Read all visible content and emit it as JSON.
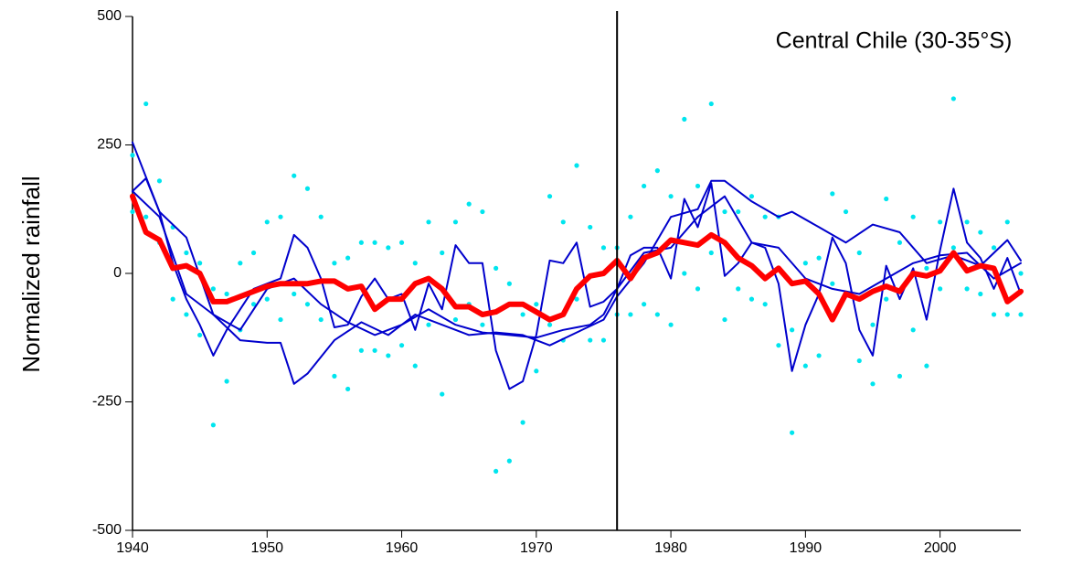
{
  "chart_data": {
    "type": "line",
    "annotation": "Central Chile (30-35°S)",
    "ylabel": "Normalized rainfall",
    "xlim": [
      1940,
      2006
    ],
    "xticks": [
      1940,
      1950,
      1960,
      1970,
      1980,
      1990,
      2000
    ],
    "ylim": [
      -500,
      500
    ],
    "yticks": [
      -500,
      -250,
      0,
      250,
      500
    ],
    "vline": 1976,
    "series": [
      {
        "type": "scatter",
        "color": "#00e5ee",
        "x": [
          1940,
          1940,
          1941,
          1941,
          1942,
          1942,
          1943,
          1943,
          1944,
          1944,
          1945,
          1945,
          1946,
          1946,
          1947,
          1947,
          1948,
          1948,
          1949,
          1949,
          1950,
          1950,
          1951,
          1951,
          1952,
          1952,
          1953,
          1953,
          1954,
          1954,
          1955,
          1955,
          1956,
          1956,
          1957,
          1957,
          1958,
          1958,
          1959,
          1959,
          1960,
          1960,
          1961,
          1961,
          1962,
          1962,
          1963,
          1963,
          1964,
          1964,
          1965,
          1965,
          1966,
          1966,
          1967,
          1967,
          1968,
          1968,
          1969,
          1969,
          1970,
          1970,
          1971,
          1971,
          1972,
          1972,
          1973,
          1973,
          1974,
          1974,
          1975,
          1975,
          1976,
          1976,
          1977,
          1977,
          1978,
          1978,
          1979,
          1979,
          1980,
          1980,
          1981,
          1981,
          1982,
          1982,
          1983,
          1983,
          1984,
          1984,
          1985,
          1985,
          1986,
          1986,
          1987,
          1987,
          1988,
          1988,
          1989,
          1989,
          1990,
          1990,
          1991,
          1991,
          1992,
          1992,
          1993,
          1993,
          1994,
          1994,
          1995,
          1995,
          1996,
          1996,
          1997,
          1997,
          1998,
          1998,
          1999,
          1999,
          2000,
          2000,
          2001,
          2001,
          2002,
          2002,
          2003,
          2003,
          2004,
          2004,
          2005,
          2005,
          2006,
          2006
        ],
        "values": [
          230,
          120,
          330,
          110,
          180,
          60,
          90,
          -50,
          40,
          -80,
          20,
          -120,
          -30,
          -295,
          -40,
          -210,
          20,
          -110,
          40,
          -60,
          100,
          -50,
          110,
          -90,
          190,
          -40,
          165,
          -60,
          110,
          -90,
          20,
          -200,
          30,
          -225,
          60,
          -150,
          60,
          -150,
          50,
          -160,
          60,
          -140,
          20,
          -180,
          100,
          -100,
          40,
          -235,
          100,
          -90,
          135,
          -60,
          120,
          -100,
          10,
          -385,
          -20,
          -365,
          -80,
          -290,
          -60,
          -190,
          150,
          -100,
          100,
          -130,
          210,
          -50,
          90,
          -130,
          50,
          -130,
          50,
          -80,
          110,
          -80,
          170,
          -60,
          200,
          -80,
          150,
          -100,
          300,
          0,
          170,
          -30,
          330,
          40,
          120,
          -90,
          120,
          -30,
          150,
          -50,
          110,
          -60,
          110,
          -140,
          -110,
          -310,
          20,
          -180,
          30,
          -160,
          155,
          -20,
          120,
          -40,
          40,
          -170,
          -100,
          -215,
          145,
          -50,
          60,
          -200,
          110,
          -110,
          10,
          -180,
          100,
          -30,
          340,
          50,
          100,
          -30,
          80,
          -40,
          50,
          -80,
          100,
          -80,
          0,
          -80
        ]
      },
      {
        "type": "line",
        "color": "#0000cc",
        "x": [
          1940,
          1942,
          1944,
          1946,
          1948,
          1950,
          1951,
          1952,
          1953,
          1955,
          1957,
          1959,
          1961,
          1963,
          1965,
          1967,
          1969,
          1971,
          1973,
          1975,
          1976,
          1978,
          1980,
          1982,
          1983,
          1984,
          1986,
          1988,
          1989,
          1991,
          1993,
          1995,
          1997,
          1999,
          2001,
          2003,
          2005,
          2006
        ],
        "values": [
          255,
          120,
          70,
          -80,
          -130,
          -135,
          -135,
          -215,
          -195,
          -130,
          -95,
          -120,
          -80,
          -100,
          -120,
          -115,
          -120,
          -140,
          -115,
          -90,
          -45,
          20,
          110,
          125,
          180,
          180,
          140,
          110,
          120,
          90,
          60,
          95,
          80,
          20,
          35,
          15,
          65,
          25
        ]
      },
      {
        "type": "line",
        "color": "#0000cc",
        "x": [
          1940,
          1942,
          1944,
          1946,
          1948,
          1950,
          1952,
          1954,
          1956,
          1958,
          1960,
          1962,
          1964,
          1966,
          1968,
          1970,
          1972,
          1974,
          1975,
          1976,
          1978,
          1980,
          1982,
          1984,
          1986,
          1988,
          1990,
          1992,
          1994,
          1996,
          1998,
          2000,
          2002,
          2004,
          2006
        ],
        "values": [
          160,
          110,
          -40,
          -80,
          -110,
          -30,
          -10,
          -60,
          -95,
          -120,
          -100,
          -70,
          -100,
          -115,
          -120,
          -125,
          -110,
          -100,
          -80,
          -30,
          40,
          50,
          110,
          150,
          60,
          50,
          -10,
          -30,
          -40,
          -10,
          20,
          35,
          40,
          -10,
          20
        ]
      },
      {
        "type": "line",
        "color": "#0000cc",
        "x": [
          1940,
          1941,
          1942,
          1943,
          1944,
          1945,
          1946,
          1947,
          1948,
          1949,
          1950,
          1951,
          1952,
          1953,
          1954,
          1955,
          1956,
          1957,
          1958,
          1959,
          1960,
          1961,
          1962,
          1963,
          1964,
          1965,
          1966,
          1967,
          1968,
          1969,
          1970,
          1971,
          1972,
          1973,
          1974,
          1975,
          1976,
          1977,
          1978,
          1979,
          1980,
          1981,
          1982,
          1983,
          1984,
          1985,
          1986,
          1987,
          1988,
          1989,
          1990,
          1991,
          1992,
          1993,
          1994,
          1995,
          1996,
          1997,
          1998,
          1999,
          2000,
          2001,
          2002,
          2003,
          2004,
          2005,
          2006
        ],
        "values": [
          160,
          185,
          120,
          20,
          -50,
          -100,
          -160,
          -110,
          -70,
          -30,
          -20,
          -10,
          75,
          50,
          -10,
          -105,
          -100,
          -45,
          -10,
          -50,
          -40,
          -110,
          -20,
          -70,
          55,
          20,
          20,
          -150,
          -225,
          -210,
          -120,
          25,
          20,
          60,
          -65,
          -55,
          -30,
          35,
          50,
          50,
          -10,
          145,
          90,
          175,
          -5,
          20,
          60,
          50,
          -20,
          -190,
          -100,
          -40,
          70,
          20,
          -110,
          -160,
          15,
          -50,
          10,
          -90,
          45,
          165,
          60,
          30,
          -30,
          30,
          -40
        ]
      },
      {
        "type": "line",
        "color": "#ff0000",
        "width": 6,
        "x": [
          1940,
          1941,
          1942,
          1943,
          1944,
          1945,
          1946,
          1947,
          1948,
          1949,
          1950,
          1951,
          1952,
          1953,
          1954,
          1955,
          1956,
          1957,
          1958,
          1959,
          1960,
          1961,
          1962,
          1963,
          1964,
          1965,
          1966,
          1967,
          1968,
          1969,
          1970,
          1971,
          1972,
          1973,
          1974,
          1975,
          1976,
          1977,
          1978,
          1979,
          1980,
          1981,
          1982,
          1983,
          1984,
          1985,
          1986,
          1987,
          1988,
          1989,
          1990,
          1991,
          1992,
          1993,
          1994,
          1995,
          1996,
          1997,
          1998,
          1999,
          2000,
          2001,
          2002,
          2003,
          2004,
          2005,
          2006
        ],
        "values": [
          150,
          80,
          65,
          10,
          15,
          0,
          -55,
          -55,
          -45,
          -35,
          -25,
          -20,
          -20,
          -20,
          -15,
          -15,
          -30,
          -25,
          -70,
          -50,
          -50,
          -20,
          -10,
          -30,
          -65,
          -65,
          -80,
          -75,
          -60,
          -60,
          -75,
          -90,
          -80,
          -30,
          -5,
          0,
          25,
          -10,
          30,
          40,
          65,
          60,
          55,
          75,
          60,
          30,
          15,
          -10,
          10,
          -20,
          -15,
          -40,
          -90,
          -40,
          -50,
          -35,
          -25,
          -35,
          0,
          -5,
          5,
          40,
          5,
          15,
          10,
          -55,
          -35
        ]
      }
    ]
  }
}
